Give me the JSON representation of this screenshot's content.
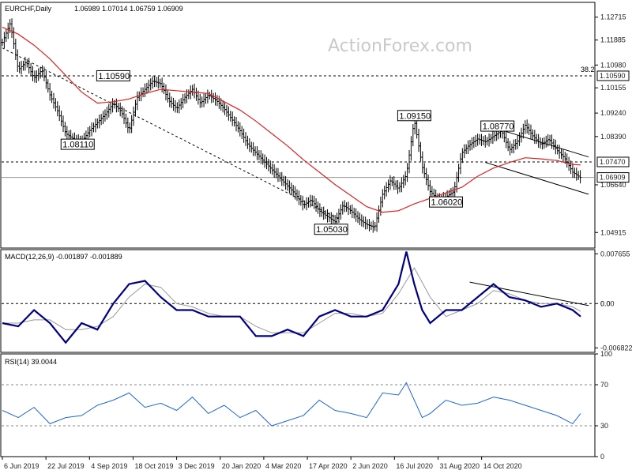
{
  "chart_data": [
    {
      "type": "line",
      "panel": "price",
      "header": {
        "symbol": "EURCHF,Daily",
        "ohlc": "1.06989 1.07014 1.06759 1.06909"
      },
      "watermark": "ActionForex.com",
      "ylim": [
        1.0435,
        1.1325
      ],
      "yticks": [
        {
          "value": 1.12715,
          "label": "1.12715"
        },
        {
          "value": 1.11885,
          "label": "1.11885"
        },
        {
          "value": 1.1098,
          "label": "1.10980"
        },
        {
          "value": 1.10155,
          "label": "1.10155"
        },
        {
          "value": 1.0924,
          "label": "1.09240"
        },
        {
          "value": 1.0839,
          "label": "1.08390"
        },
        {
          "value": 1.0664,
          "label": "1.06640"
        },
        {
          "value": 1.04915,
          "label": "1.04915"
        }
      ],
      "hlines": [
        {
          "value": 1.1059,
          "label": "1.10590",
          "style": "dashed",
          "color": "#000000",
          "fib_label": "38.2"
        },
        {
          "value": 1.0747,
          "label": "1.07470",
          "style": "dashed",
          "color": "#000000"
        },
        {
          "value": 1.06909,
          "label": "1.06909",
          "style": "solid",
          "color": "#999999"
        }
      ],
      "annotations": [
        {
          "label": "1.10590",
          "x": 28,
          "y": 1.1059
        },
        {
          "label": "1.08110",
          "x": 19,
          "y": 1.0811
        },
        {
          "label": "1.05030",
          "x": 83,
          "y": 1.0503
        },
        {
          "label": "1.09150",
          "x": 104,
          "y": 1.0915
        },
        {
          "label": "1.06020",
          "x": 112,
          "y": 1.0602
        },
        {
          "label": "1.08770",
          "x": 125,
          "y": 1.0877
        }
      ],
      "series": [
        {
          "role": "price",
          "color": "#000000",
          "x": [
            0,
            2,
            4,
            6,
            8,
            10,
            12,
            14,
            16,
            18,
            20,
            22,
            24,
            26,
            28,
            30,
            32,
            34,
            36,
            38,
            40,
            42,
            44,
            46,
            48,
            50,
            52,
            54,
            56,
            58,
            60,
            62,
            64,
            66,
            68,
            70,
            72,
            74,
            76,
            78,
            80,
            82,
            84,
            86,
            88,
            90,
            92,
            94,
            96,
            98,
            100,
            102,
            104,
            106,
            108,
            110,
            112,
            114,
            116,
            118,
            120,
            122,
            124,
            126,
            128,
            130,
            132,
            134,
            136,
            138,
            140,
            142,
            144,
            146
          ],
          "values": [
            1.118,
            1.125,
            1.108,
            1.111,
            1.105,
            1.108,
            1.099,
            1.093,
            1.085,
            1.083,
            1.082,
            1.086,
            1.089,
            1.092,
            1.096,
            1.093,
            1.086,
            1.098,
            1.101,
            1.104,
            1.103,
            1.097,
            1.094,
            1.098,
            1.101,
            1.096,
            1.099,
            1.097,
            1.094,
            1.09,
            1.086,
            1.081,
            1.078,
            1.075,
            1.072,
            1.069,
            1.066,
            1.063,
            1.059,
            1.061,
            1.057,
            1.055,
            1.053,
            1.059,
            1.057,
            1.054,
            1.052,
            1.051,
            1.063,
            1.068,
            1.065,
            1.07,
            1.09,
            1.073,
            1.064,
            1.061,
            1.062,
            1.064,
            1.078,
            1.081,
            1.083,
            1.082,
            1.084,
            1.086,
            1.079,
            1.082,
            1.088,
            1.084,
            1.081,
            1.083,
            1.079,
            1.076,
            1.071,
            1.069
          ]
        },
        {
          "role": "moving-average",
          "color": "#dd2222",
          "x": [
            0,
            4,
            8,
            12,
            16,
            20,
            24,
            28,
            32,
            36,
            40,
            44,
            48,
            52,
            56,
            60,
            64,
            68,
            72,
            76,
            80,
            84,
            88,
            92,
            96,
            100,
            104,
            108,
            112,
            116,
            120,
            124,
            128,
            132,
            136,
            140,
            144,
            146
          ],
          "values": [
            1.1235,
            1.121,
            1.117,
            1.112,
            1.106,
            1.1,
            1.096,
            1.0965,
            1.0975,
            1.0995,
            1.101,
            1.1005,
            1.1,
            1.0995,
            1.0965,
            1.0935,
            1.0895,
            1.085,
            1.0805,
            1.0755,
            1.071,
            1.0665,
            1.0625,
            1.0585,
            1.0565,
            1.057,
            1.0595,
            1.0615,
            1.0635,
            1.0655,
            1.0695,
            1.0725,
            1.0745,
            1.0762,
            1.0758,
            1.0752,
            1.0738,
            1.0736
          ]
        }
      ],
      "trendlines": [
        {
          "x": [
            0,
            85
          ],
          "y": [
            1.116,
            1.054
          ],
          "style": "dashed"
        },
        {
          "x": [
            122,
            148
          ],
          "y": [
            1.088,
            1.0765
          ],
          "style": "solid"
        },
        {
          "x": [
            122,
            148
          ],
          "y": [
            1.0745,
            1.063
          ],
          "style": "solid"
        }
      ]
    },
    {
      "type": "line",
      "panel": "macd",
      "header": "MACD(12,26,9) -0.001897 -0.001889",
      "ylim": [
        -0.0075,
        0.0083
      ],
      "yticks": [
        {
          "value": 0.007655,
          "label": "0.007655"
        },
        {
          "value": 0.0,
          "label": "0.0"
        },
        {
          "value": -0.006822,
          "label": "-0.006822"
        }
      ],
      "hlines": [
        {
          "value": 0.0,
          "style": "dashed",
          "color": "#000000",
          "label": "0.00"
        }
      ],
      "series": [
        {
          "role": "macd",
          "color": "#000080",
          "x": [
            0,
            4,
            8,
            12,
            16,
            20,
            24,
            28,
            32,
            36,
            40,
            44,
            48,
            52,
            56,
            60,
            64,
            68,
            72,
            76,
            80,
            84,
            88,
            92,
            96,
            100,
            102,
            104,
            106,
            108,
            112,
            116,
            120,
            124,
            128,
            132,
            136,
            140,
            144,
            146
          ],
          "values": [
            -0.003,
            -0.0035,
            -0.001,
            -0.003,
            -0.006,
            -0.003,
            -0.004,
            0.0,
            0.003,
            0.0035,
            0.001,
            -0.001,
            -0.001,
            -0.002,
            -0.002,
            -0.002,
            -0.005,
            -0.005,
            -0.004,
            -0.005,
            -0.002,
            -0.001,
            -0.002,
            -0.002,
            -0.001,
            0.003,
            0.008,
            0.003,
            -0.001,
            -0.003,
            -0.001,
            -0.001,
            0.001,
            0.003,
            0.001,
            0.0005,
            -0.0005,
            0.0,
            -0.001,
            -0.002
          ]
        },
        {
          "role": "signal",
          "color": "#999999",
          "x": [
            0,
            4,
            8,
            12,
            16,
            20,
            24,
            28,
            32,
            36,
            40,
            44,
            48,
            52,
            56,
            60,
            64,
            68,
            72,
            76,
            80,
            84,
            88,
            92,
            96,
            100,
            104,
            108,
            112,
            116,
            120,
            124,
            128,
            132,
            136,
            140,
            144,
            146
          ],
          "values": [
            -0.003,
            -0.003,
            -0.0025,
            -0.0025,
            -0.004,
            -0.004,
            -0.0035,
            -0.002,
            0.001,
            0.003,
            0.0025,
            0.0,
            -0.0005,
            -0.0015,
            -0.002,
            -0.002,
            -0.0035,
            -0.0045,
            -0.0045,
            -0.0045,
            -0.003,
            -0.0015,
            -0.0015,
            -0.002,
            -0.0015,
            0.0015,
            0.0055,
            0.001,
            -0.002,
            -0.001,
            0.0,
            0.002,
            0.0015,
            0.0005,
            0.0,
            0.0,
            -0.0005,
            -0.0012
          ]
        }
      ],
      "trendlines": [
        {
          "x": [
            118,
            148
          ],
          "y": [
            0.0033,
            -0.0003
          ],
          "style": "solid"
        }
      ]
    },
    {
      "type": "line",
      "panel": "rsi",
      "header": "RSI(14) 39.0044",
      "ylim": [
        0,
        100
      ],
      "yticks": [
        {
          "value": 100,
          "label": "100"
        },
        {
          "value": 70,
          "label": "70"
        },
        {
          "value": 30,
          "label": "30"
        },
        {
          "value": 0,
          "label": "0"
        }
      ],
      "hlines": [
        {
          "value": 70,
          "style": "dashed",
          "color": "#888888"
        },
        {
          "value": 30,
          "style": "dashed",
          "color": "#888888"
        }
      ],
      "series": [
        {
          "role": "rsi",
          "color": "#1e66d8",
          "x": [
            0,
            4,
            8,
            12,
            16,
            20,
            24,
            28,
            32,
            36,
            40,
            44,
            48,
            52,
            56,
            60,
            64,
            68,
            72,
            76,
            80,
            84,
            88,
            92,
            96,
            100,
            102,
            104,
            106,
            108,
            112,
            116,
            120,
            124,
            128,
            132,
            136,
            140,
            144,
            146
          ],
          "values": [
            45,
            38,
            48,
            32,
            38,
            40,
            50,
            55,
            62,
            48,
            52,
            45,
            58,
            42,
            50,
            38,
            45,
            30,
            35,
            40,
            55,
            45,
            42,
            38,
            62,
            60,
            72,
            55,
            38,
            42,
            55,
            50,
            52,
            58,
            55,
            50,
            45,
            40,
            32,
            42
          ]
        }
      ]
    }
  ],
  "x_axis": {
    "x_max": 148,
    "ticks": [
      {
        "x": 0,
        "label": "6 Jun 2019"
      },
      {
        "x": 11,
        "label": "22 Jul 2019"
      },
      {
        "x": 22,
        "label": "4 Sep 2019"
      },
      {
        "x": 33,
        "label": "18 Oct 2019"
      },
      {
        "x": 44,
        "label": "3 Dec 2019"
      },
      {
        "x": 55,
        "label": "20 Jan 2020"
      },
      {
        "x": 66,
        "label": "4 Mar 2020"
      },
      {
        "x": 77,
        "label": "17 Apr 2020"
      },
      {
        "x": 88,
        "label": "2 Jun 2020"
      },
      {
        "x": 99,
        "label": "16 Jul 2020"
      },
      {
        "x": 110,
        "label": "31 Aug 2020"
      },
      {
        "x": 121,
        "label": "14 Oct 2020"
      }
    ]
  },
  "colors": {
    "background": "#ffffff",
    "border": "#000000",
    "price_bars": "#000000",
    "ma": "#dd2222",
    "macd": "#000080",
    "signal": "#999999",
    "rsi": "#1e66d8",
    "label_box": "#ffffff"
  }
}
